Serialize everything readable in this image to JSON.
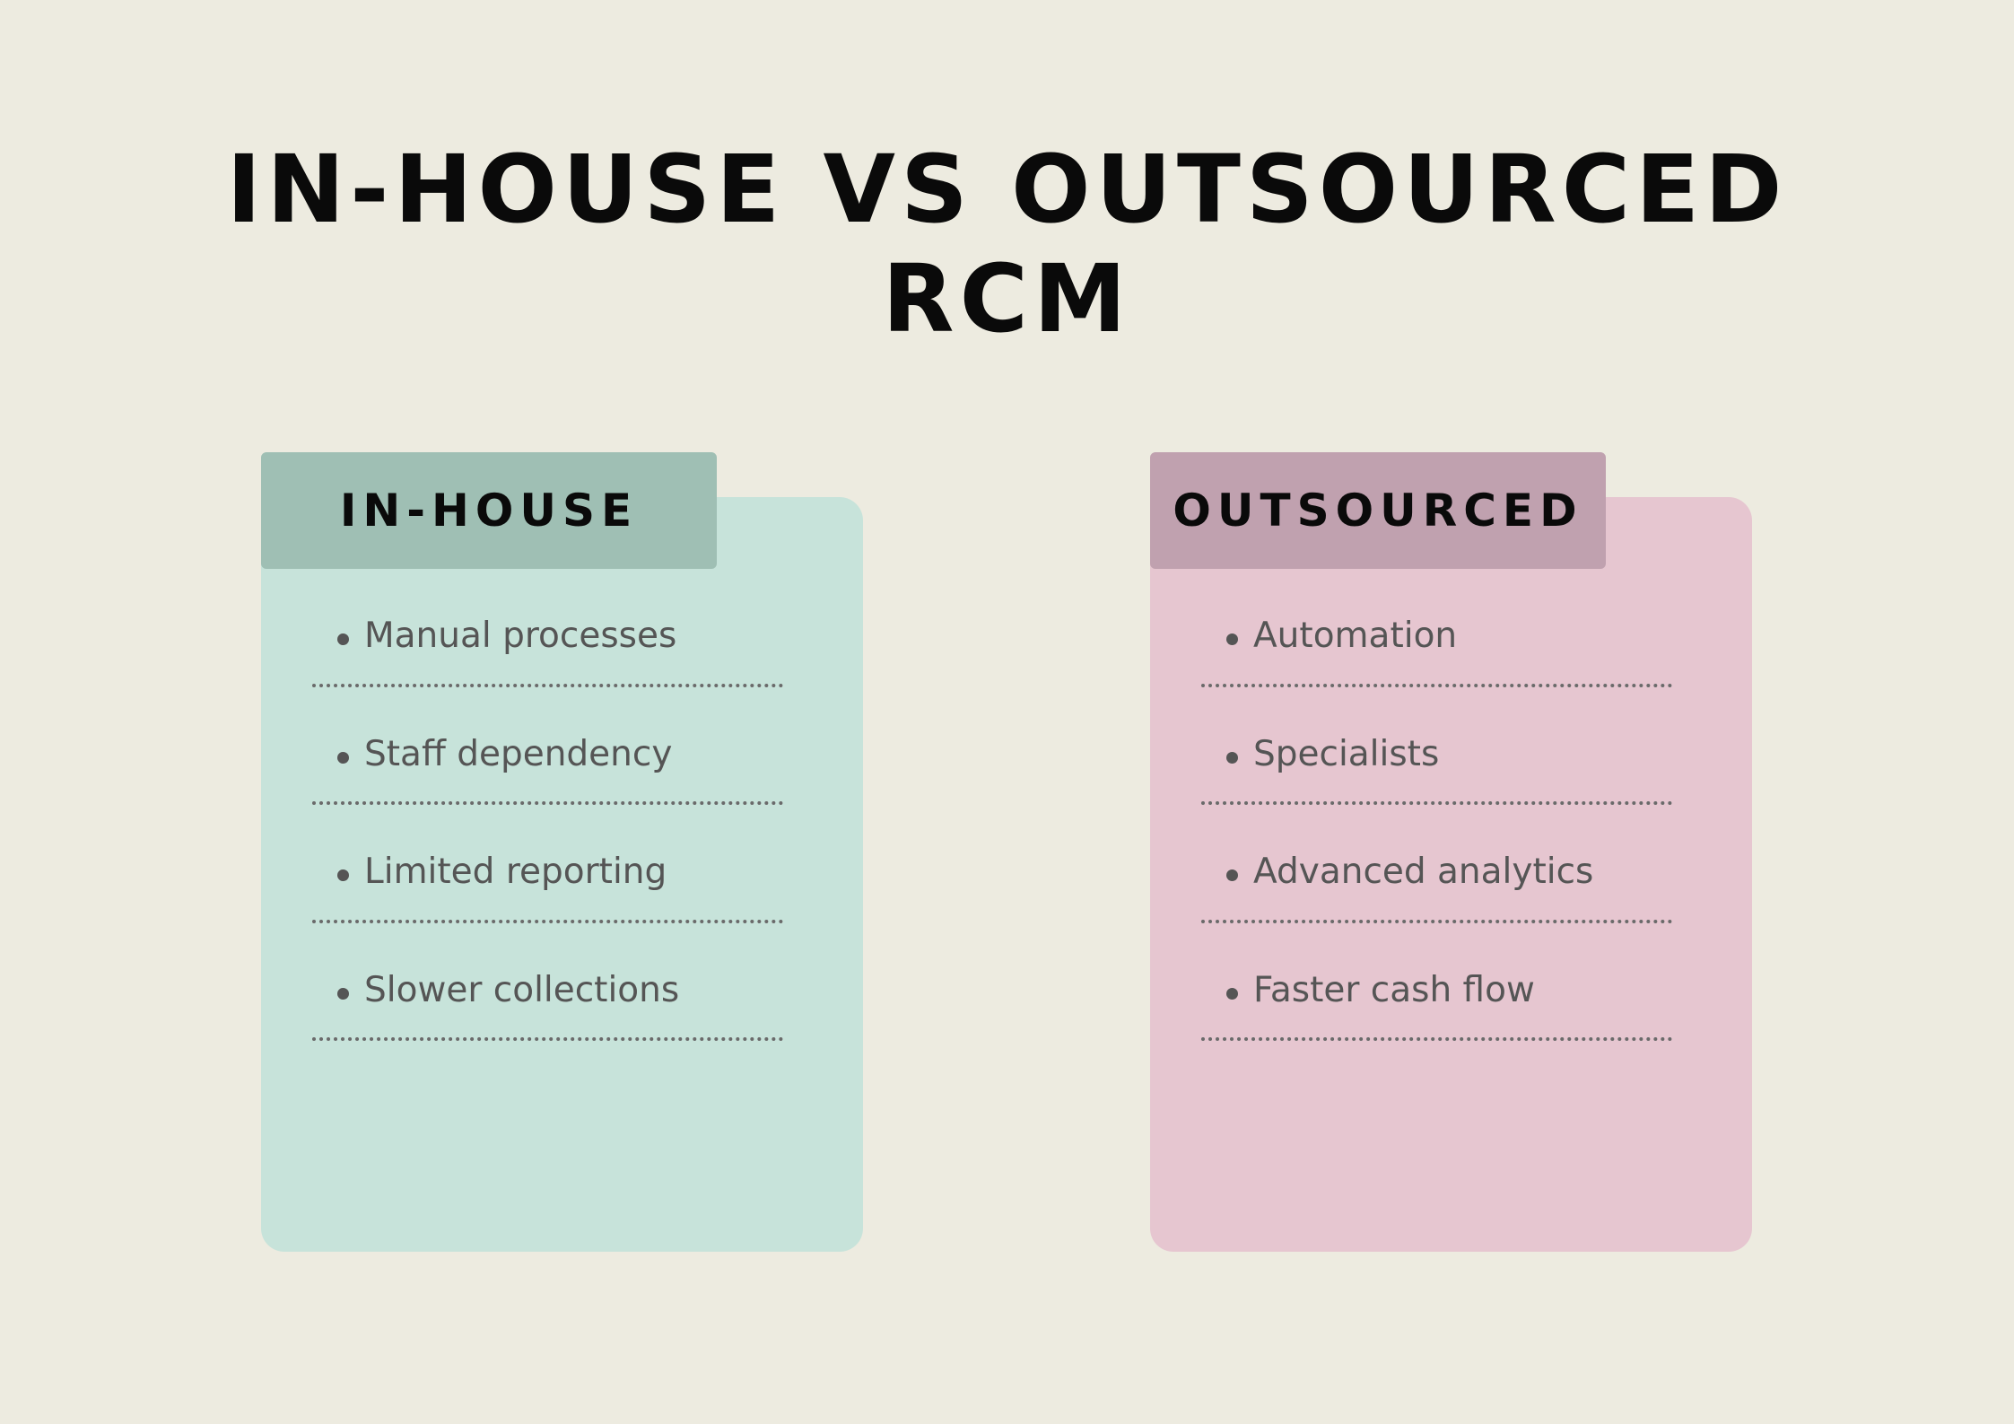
{
  "title": {
    "line1": "In-House vs Outsourced",
    "line2": "RCM"
  },
  "columns": [
    {
      "heading": "IN-HOUSE",
      "color_tab": "#9FBFB4",
      "color_body": "#C7E3DA",
      "items": [
        "Manual processes",
        "Staff dependency",
        "Limited reporting",
        "Slower collections"
      ]
    },
    {
      "heading": "OUTSOURCED",
      "color_tab": "#C0A1AF",
      "color_body": "#E6C6D0",
      "items": [
        "Automation",
        "Specialists",
        "Advanced analytics",
        "Faster cash flow"
      ]
    }
  ]
}
